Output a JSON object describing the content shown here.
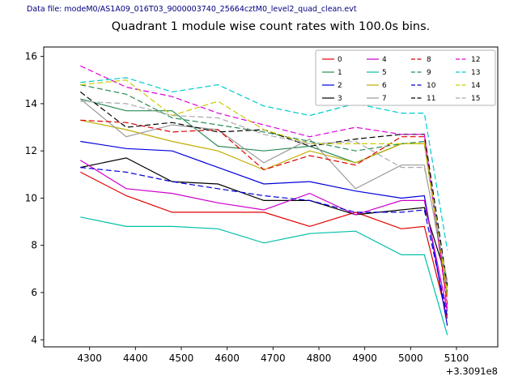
{
  "header": {
    "data_file_label": "Data file: modeM0/AS1A09_016T03_9000003740_25664cztM0_level2_quad_clean.evt"
  },
  "chart_data": {
    "type": "line",
    "title": "Quadrant 1 module wise count rates with 100.0s bins.",
    "xlabel": "",
    "ylabel": "",
    "x_offset_text": "+3.3091e8",
    "xlim": [
      4200,
      5190
    ],
    "ylim": [
      3.7,
      16.4
    ],
    "xticks": [
      4300,
      4400,
      4500,
      4600,
      4700,
      4800,
      4900,
      5000,
      5100
    ],
    "yticks": [
      4,
      6,
      8,
      10,
      12,
      14,
      16
    ],
    "grid": false,
    "legend_position": "upper right",
    "legend_columns": 4,
    "x": [
      4280,
      4380,
      4480,
      4580,
      4680,
      4780,
      4880,
      4980,
      5030,
      5080
    ],
    "series": [
      {
        "name": "0",
        "color": "#e00000",
        "dash": false,
        "values": [
          11.1,
          10.1,
          9.4,
          9.4,
          9.4,
          8.8,
          9.4,
          8.7,
          8.8,
          4.9
        ]
      },
      {
        "name": "1",
        "color": "#2e8b57",
        "dash": false,
        "values": [
          14.2,
          13.7,
          13.7,
          12.2,
          12.0,
          12.2,
          11.5,
          12.3,
          12.3,
          5.9
        ]
      },
      {
        "name": "2",
        "color": "#0000dd",
        "dash": false,
        "values": [
          12.4,
          12.1,
          12.0,
          11.3,
          10.6,
          10.7,
          10.3,
          10.0,
          10.1,
          4.6
        ]
      },
      {
        "name": "3",
        "color": "#000000",
        "dash": false,
        "values": [
          11.3,
          11.7,
          10.7,
          10.6,
          9.9,
          9.9,
          9.3,
          9.5,
          9.6,
          6.5
        ]
      },
      {
        "name": "4",
        "color": "#cc00cc",
        "dash": false,
        "values": [
          11.6,
          10.4,
          10.2,
          9.8,
          9.5,
          10.2,
          9.3,
          9.9,
          9.9,
          5.2
        ]
      },
      {
        "name": "5",
        "color": "#00bfa8",
        "dash": false,
        "values": [
          9.2,
          8.8,
          8.8,
          8.7,
          8.1,
          8.5,
          8.6,
          7.6,
          7.6,
          4.2
        ]
      },
      {
        "name": "6",
        "color": "#bfae00",
        "dash": false,
        "values": [
          13.3,
          12.9,
          12.4,
          12.0,
          11.2,
          12.0,
          11.5,
          12.3,
          12.3,
          5.8
        ]
      },
      {
        "name": "7",
        "color": "#9a9a9a",
        "dash": false,
        "values": [
          14.2,
          12.6,
          13.1,
          12.9,
          11.5,
          12.5,
          10.4,
          11.4,
          11.4,
          6.2
        ]
      },
      {
        "name": "8",
        "color": "#e00000",
        "dash": true,
        "values": [
          13.3,
          13.2,
          12.8,
          12.9,
          11.2,
          11.8,
          11.4,
          12.6,
          12.6,
          5.5
        ]
      },
      {
        "name": "9",
        "color": "#2e8b57",
        "dash": true,
        "values": [
          14.8,
          14.4,
          13.4,
          13.1,
          12.8,
          12.4,
          12.0,
          12.3,
          12.4,
          6.0
        ]
      },
      {
        "name": "10",
        "color": "#0000dd",
        "dash": true,
        "values": [
          11.3,
          11.1,
          10.7,
          10.4,
          10.1,
          9.9,
          9.4,
          9.4,
          9.5,
          5.0
        ]
      },
      {
        "name": "11",
        "color": "#000000",
        "dash": true,
        "values": [
          14.5,
          13.0,
          13.2,
          12.8,
          12.9,
          12.2,
          12.5,
          12.7,
          12.7,
          6.3
        ]
      },
      {
        "name": "12",
        "color": "#dd00dd",
        "dash": true,
        "values": [
          15.6,
          14.7,
          14.3,
          13.6,
          13.1,
          12.6,
          13.0,
          12.7,
          12.7,
          5.3
        ]
      },
      {
        "name": "13",
        "color": "#00cccc",
        "dash": true,
        "values": [
          14.9,
          15.1,
          14.5,
          14.8,
          13.9,
          13.5,
          14.0,
          13.6,
          13.6,
          7.8
        ]
      },
      {
        "name": "14",
        "color": "#cccc00",
        "dash": true,
        "values": [
          14.8,
          15.0,
          13.5,
          14.1,
          12.9,
          12.3,
          12.3,
          12.3,
          12.3,
          6.0
        ]
      },
      {
        "name": "15",
        "color": "#aaaaaa",
        "dash": true,
        "values": [
          14.1,
          14.0,
          13.5,
          13.4,
          12.7,
          12.3,
          12.4,
          11.3,
          11.3,
          6.5
        ]
      }
    ]
  }
}
